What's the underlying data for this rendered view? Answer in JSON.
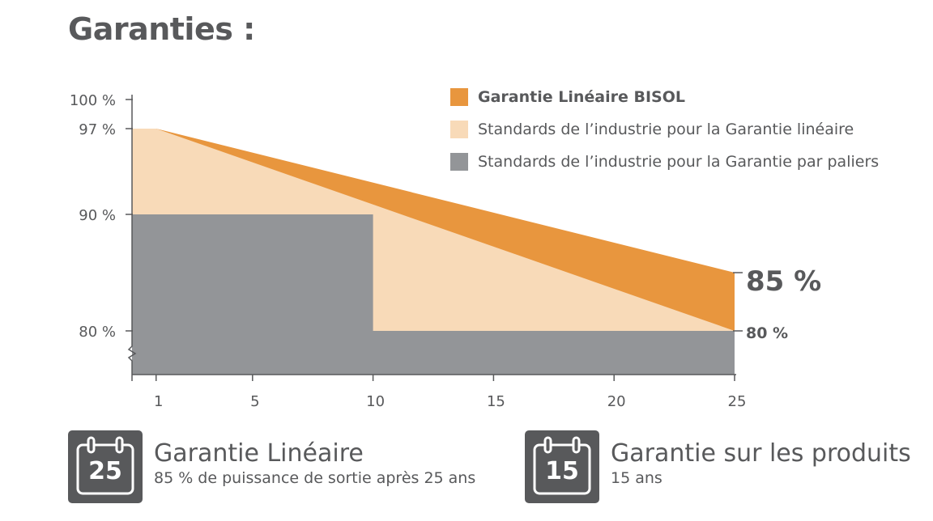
{
  "title": "Garanties :",
  "chart_data": {
    "type": "area",
    "title": "Garanties :",
    "x": [
      1,
      5,
      10,
      15,
      20,
      25
    ],
    "x_ticks": [
      "1",
      "5",
      "10",
      "15",
      "20",
      "25"
    ],
    "y_ticks": [
      "100 %",
      "97 %",
      "90 %",
      "80 %"
    ],
    "ylim": [
      76,
      100
    ],
    "xlim": [
      0,
      25
    ],
    "axis_break": true,
    "grid": false,
    "legend_position": "top-right",
    "series": [
      {
        "name": "Garantie Linéaire BISOL",
        "color": "#e8963e",
        "points": [
          [
            0,
            97
          ],
          [
            1,
            97
          ],
          [
            25,
            85
          ]
        ]
      },
      {
        "name": "Standards de l’industrie pour la Garantie linéaire",
        "color": "#f8dab8",
        "points": [
          [
            0,
            97
          ],
          [
            1,
            97
          ],
          [
            25,
            80
          ]
        ]
      },
      {
        "name": "Standards de l’industrie pour la Garantie par paliers",
        "color": "#939598",
        "points": [
          [
            0,
            90
          ],
          [
            10,
            90
          ],
          [
            10,
            80
          ],
          [
            25,
            80
          ]
        ]
      }
    ],
    "annotations": [
      {
        "x": 25,
        "y": 85,
        "label": "85 %"
      },
      {
        "x": 25,
        "y": 80,
        "label": "80 %"
      }
    ]
  },
  "warranties": [
    {
      "number": "25",
      "title": "Garantie Linéaire",
      "subtitle": "85 % de puissance de sortie après 25 ans",
      "icon": "calendar-icon"
    },
    {
      "number": "15",
      "title": "Garantie sur les produits",
      "subtitle": "15 ans",
      "icon": "calendar-icon"
    }
  ]
}
